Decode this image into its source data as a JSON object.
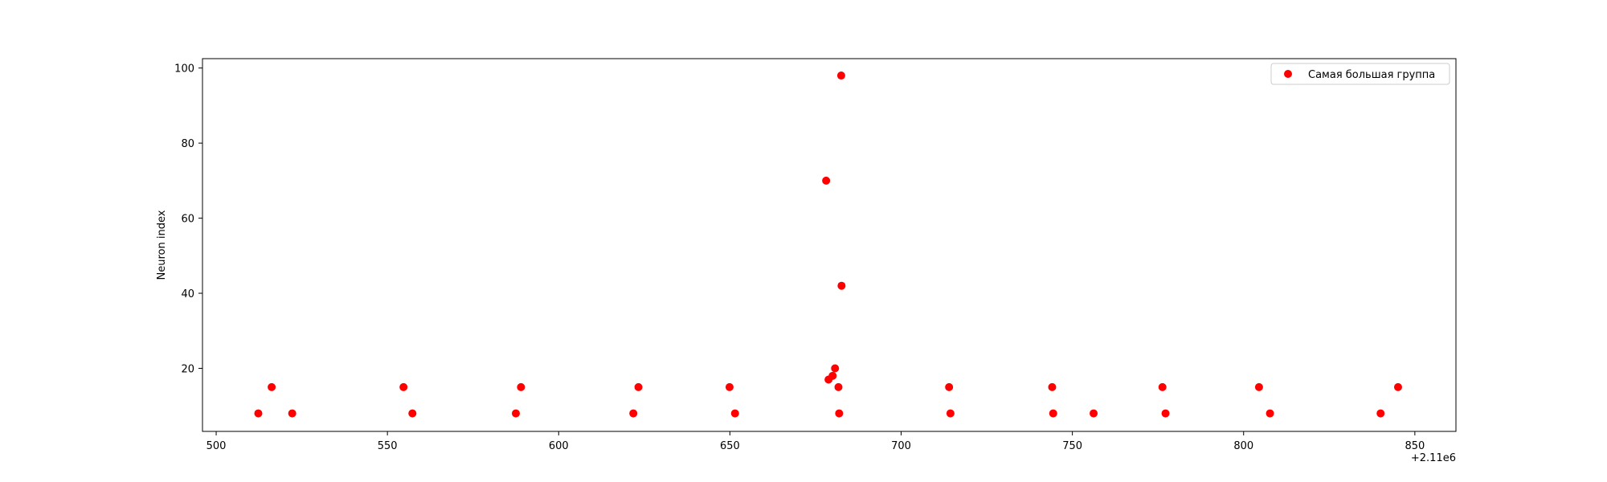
{
  "chart_data": {
    "type": "scatter",
    "title": "",
    "xlabel": "",
    "ylabel": "Neuron index",
    "x_offset_label": "+2.11e6",
    "x_ticks": [
      500,
      550,
      600,
      650,
      700,
      750,
      800,
      850
    ],
    "y_ticks": [
      20,
      40,
      60,
      80,
      100
    ],
    "xlim": [
      2110496,
      2110862
    ],
    "ylim": [
      3.2,
      102.5
    ],
    "grid": false,
    "legend_position": "top-right",
    "series": [
      {
        "name": "Самая большая группа",
        "color": "#ff0000",
        "points": [
          {
            "x": 2110512.3,
            "y": 8
          },
          {
            "x": 2110516.2,
            "y": 15
          },
          {
            "x": 2110522.2,
            "y": 8
          },
          {
            "x": 2110554.7,
            "y": 15
          },
          {
            "x": 2110557.3,
            "y": 8
          },
          {
            "x": 2110587.5,
            "y": 8
          },
          {
            "x": 2110589,
            "y": 15
          },
          {
            "x": 2110621.8,
            "y": 8
          },
          {
            "x": 2110623.3,
            "y": 15
          },
          {
            "x": 2110649.9,
            "y": 15
          },
          {
            "x": 2110651.5,
            "y": 8
          },
          {
            "x": 2110678.1,
            "y": 70
          },
          {
            "x": 2110678.8,
            "y": 17
          },
          {
            "x": 2110680,
            "y": 18
          },
          {
            "x": 2110680.7,
            "y": 20
          },
          {
            "x": 2110681.7,
            "y": 15
          },
          {
            "x": 2110681.9,
            "y": 8
          },
          {
            "x": 2110682.5,
            "y": 98
          },
          {
            "x": 2110682.6,
            "y": 42
          },
          {
            "x": 2110714,
            "y": 15
          },
          {
            "x": 2110714.4,
            "y": 8
          },
          {
            "x": 2110744.1,
            "y": 15
          },
          {
            "x": 2110744.4,
            "y": 8
          },
          {
            "x": 2110756.2,
            "y": 8
          },
          {
            "x": 2110776.3,
            "y": 15
          },
          {
            "x": 2110777.2,
            "y": 8
          },
          {
            "x": 2110804.5,
            "y": 15
          },
          {
            "x": 2110807.7,
            "y": 8
          },
          {
            "x": 2110840,
            "y": 8
          },
          {
            "x": 2110845.1,
            "y": 15
          }
        ]
      }
    ]
  }
}
